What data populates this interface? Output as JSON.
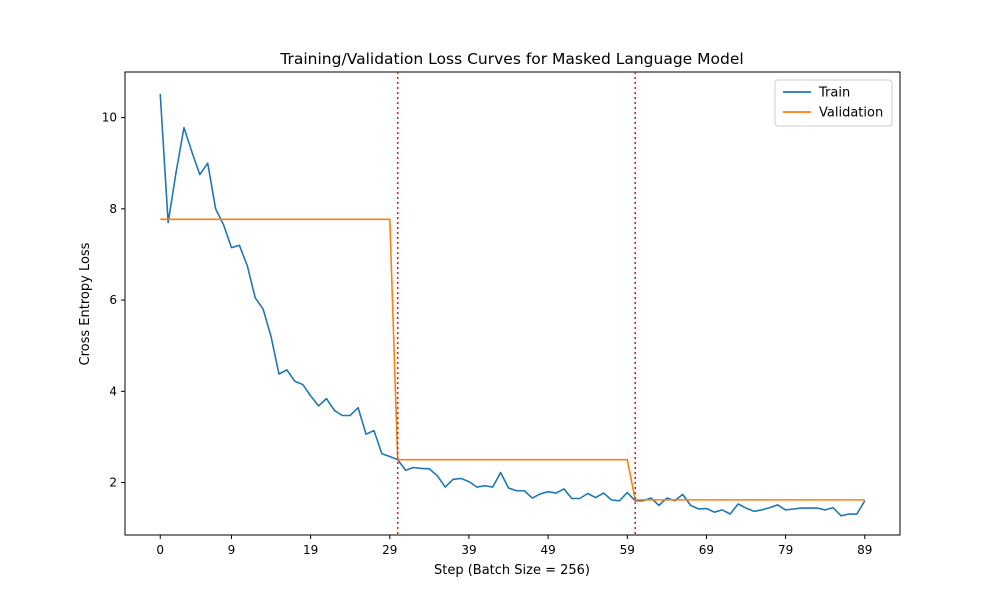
{
  "chart_data": {
    "type": "line",
    "title": "Training/Validation Loss Curves for Masked Language Model",
    "xlabel": "Step (Batch Size = 256)",
    "ylabel": "Cross Entropy Loss",
    "xlim": [
      -4.45,
      93.45
    ],
    "ylim": [
      0.85,
      11.0
    ],
    "xticks": [
      0,
      9,
      19,
      29,
      39,
      49,
      59,
      69,
      79,
      89
    ],
    "yticks": [
      2,
      4,
      6,
      8,
      10
    ],
    "grid": false,
    "legend_position": "top-right",
    "vlines": [
      {
        "x": 30,
        "color": "#d62728",
        "style": "dotted"
      },
      {
        "x": 60,
        "color": "#d62728",
        "style": "dotted"
      }
    ],
    "series": [
      {
        "name": "Train",
        "color": "#1f77b4",
        "x": [
          0,
          1,
          2,
          3,
          4,
          5,
          6,
          7,
          8,
          9,
          10,
          11,
          12,
          13,
          14,
          15,
          16,
          17,
          18,
          19,
          20,
          21,
          22,
          23,
          24,
          25,
          26,
          27,
          28,
          29,
          30,
          31,
          32,
          33,
          34,
          35,
          36,
          37,
          38,
          39,
          40,
          41,
          42,
          43,
          44,
          45,
          46,
          47,
          48,
          49,
          50,
          51,
          52,
          53,
          54,
          55,
          56,
          57,
          58,
          59,
          60,
          61,
          62,
          63,
          64,
          65,
          66,
          67,
          68,
          69,
          70,
          71,
          72,
          73,
          74,
          75,
          76,
          77,
          78,
          79,
          80,
          81,
          82,
          83,
          84,
          85,
          86,
          87,
          88,
          89
        ],
        "values": [
          10.52,
          7.7,
          8.8,
          9.78,
          9.25,
          8.75,
          9.0,
          8.0,
          7.65,
          7.15,
          7.2,
          6.75,
          6.05,
          5.8,
          5.2,
          4.38,
          4.47,
          4.22,
          4.15,
          3.9,
          3.68,
          3.84,
          3.58,
          3.47,
          3.47,
          3.64,
          3.06,
          3.14,
          2.63,
          2.57,
          2.5,
          2.27,
          2.33,
          2.31,
          2.3,
          2.15,
          1.9,
          2.07,
          2.09,
          2.02,
          1.9,
          1.93,
          1.9,
          2.22,
          1.88,
          1.82,
          1.82,
          1.66,
          1.75,
          1.8,
          1.77,
          1.86,
          1.65,
          1.65,
          1.76,
          1.67,
          1.77,
          1.62,
          1.6,
          1.78,
          1.6,
          1.6,
          1.66,
          1.5,
          1.66,
          1.6,
          1.74,
          1.5,
          1.42,
          1.43,
          1.35,
          1.4,
          1.31,
          1.53,
          1.44,
          1.37,
          1.4,
          1.45,
          1.51,
          1.4,
          1.42,
          1.44,
          1.44,
          1.44,
          1.4,
          1.45,
          1.27,
          1.31,
          1.31,
          1.6
        ]
      },
      {
        "name": "Validation",
        "color": "#ff7f0e",
        "x": [
          0,
          29,
          30,
          59,
          60,
          89
        ],
        "values": [
          7.77,
          7.77,
          2.5,
          2.5,
          1.62,
          1.62
        ]
      }
    ]
  }
}
